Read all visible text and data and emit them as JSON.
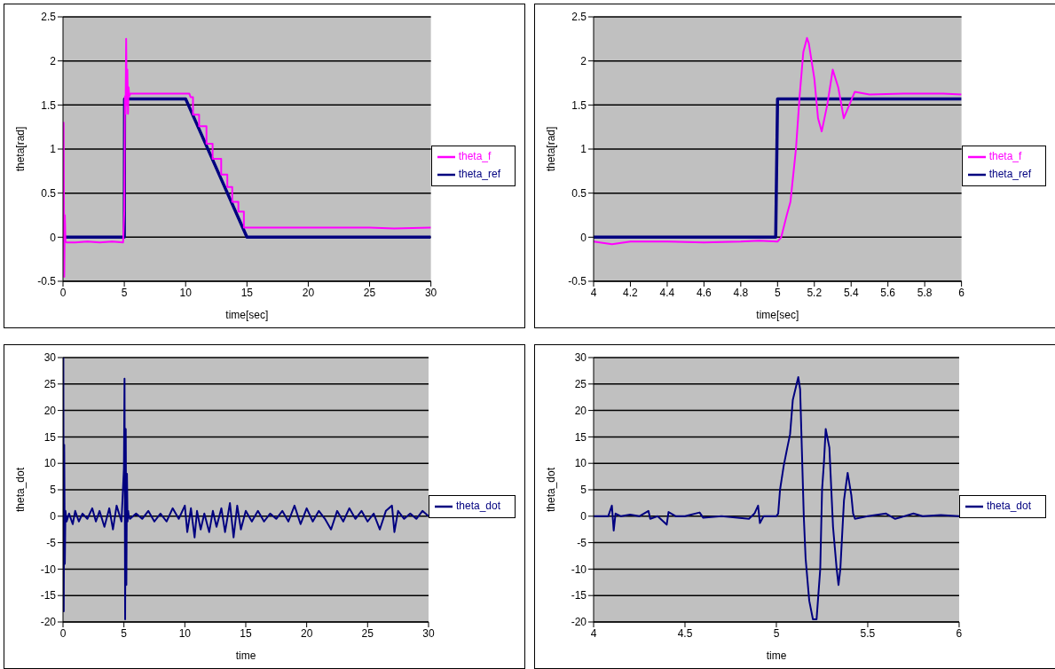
{
  "chart_data": [
    {
      "type": "line",
      "xlabel": "time[sec]",
      "ylabel": "theta[rad]",
      "xlim": [
        0,
        30
      ],
      "xticks": [
        0,
        5,
        10,
        15,
        20,
        25,
        30
      ],
      "ylim": [
        -0.5,
        2.5
      ],
      "yticks": [
        -0.5,
        0,
        0.5,
        1,
        1.5,
        2,
        2.5
      ],
      "grid": "y",
      "legend": "right",
      "marker": "none",
      "line_style": "solid",
      "series": [
        {
          "name": "theta_ref",
          "color": "#000080",
          "x": [
            0,
            5,
            5.02,
            10,
            15,
            30
          ],
          "values": [
            0,
            0,
            1.57,
            1.57,
            0,
            0
          ]
        },
        {
          "name": "theta_f",
          "color": "#ff00ff",
          "x": [
            0,
            0.05,
            0.1,
            0.15,
            0.2,
            0.3,
            0.5,
            1,
            2,
            3,
            4,
            4.9,
            5.0,
            5.05,
            5.1,
            5.15,
            5.2,
            5.25,
            5.3,
            5.35,
            5.4,
            5.5,
            6,
            8,
            10,
            10.3,
            10.4,
            10.6,
            10.6,
            11.1,
            11.1,
            11.7,
            11.7,
            12.2,
            12.2,
            12.9,
            12.9,
            13.4,
            13.4,
            13.8,
            13.8,
            14.3,
            14.3,
            14.75,
            14.75,
            16,
            20,
            25,
            27,
            30
          ],
          "values": [
            -0.05,
            1.3,
            -0.45,
            0.25,
            -0.05,
            -0.06,
            -0.06,
            -0.06,
            -0.05,
            -0.06,
            -0.05,
            -0.06,
            0.3,
            1.6,
            1.4,
            2.25,
            1.5,
            1.9,
            1.4,
            1.7,
            1.6,
            1.63,
            1.63,
            1.63,
            1.63,
            1.63,
            1.59,
            1.59,
            1.39,
            1.39,
            1.26,
            1.26,
            1.06,
            1.06,
            0.89,
            0.89,
            0.71,
            0.71,
            0.57,
            0.57,
            0.4,
            0.4,
            0.29,
            0.29,
            0.11,
            0.11,
            0.11,
            0.11,
            0.1,
            0.11
          ]
        }
      ]
    },
    {
      "type": "line",
      "xlabel": "time[sec]",
      "ylabel": "theta[rad]",
      "xlim": [
        4,
        6
      ],
      "xticks": [
        4,
        4.2,
        4.4,
        4.6,
        4.8,
        5,
        5.2,
        5.4,
        5.6,
        5.8,
        6
      ],
      "ylim": [
        -0.5,
        2.5
      ],
      "yticks": [
        -0.5,
        0,
        0.5,
        1,
        1.5,
        2,
        2.5
      ],
      "grid": "y",
      "legend": "right",
      "marker": "none",
      "line_style": "solid",
      "series": [
        {
          "name": "theta_ref",
          "color": "#000080",
          "x": [
            4,
            4.99,
            5.0,
            6
          ],
          "values": [
            0,
            0,
            1.57,
            1.57
          ]
        },
        {
          "name": "theta_f",
          "color": "#ff00ff",
          "x": [
            4,
            4.1,
            4.2,
            4.4,
            4.6,
            4.8,
            4.9,
            5.0,
            5.02,
            5.05,
            5.07,
            5.09,
            5.1,
            5.12,
            5.14,
            5.16,
            5.17,
            5.2,
            5.22,
            5.24,
            5.27,
            5.3,
            5.33,
            5.36,
            5.39,
            5.42,
            5.5,
            5.7,
            5.9,
            6
          ],
          "values": [
            -0.05,
            -0.08,
            -0.05,
            -0.05,
            -0.06,
            -0.05,
            -0.04,
            -0.05,
            0,
            0.25,
            0.4,
            0.8,
            1.0,
            1.6,
            2.1,
            2.26,
            2.2,
            1.8,
            1.35,
            1.2,
            1.5,
            1.9,
            1.7,
            1.35,
            1.5,
            1.65,
            1.62,
            1.63,
            1.63,
            1.62
          ]
        }
      ]
    },
    {
      "type": "line",
      "xlabel": "time",
      "ylabel": "theta_dot",
      "xlim": [
        0,
        30
      ],
      "xticks": [
        0,
        5,
        10,
        15,
        20,
        25,
        30
      ],
      "ylim": [
        -20,
        30
      ],
      "yticks": [
        -20,
        -15,
        -10,
        -5,
        0,
        5,
        10,
        15,
        20,
        25,
        30
      ],
      "grid": "y",
      "legend": "right",
      "marker": "none",
      "line_style": "solid",
      "series": [
        {
          "name": "theta_dot",
          "color": "#000080",
          "x": [
            0,
            0.03,
            0.06,
            0.1,
            0.15,
            0.2,
            0.3,
            0.5,
            0.8,
            1,
            1.3,
            1.6,
            2,
            2.4,
            2.7,
            3,
            3.4,
            3.8,
            4.1,
            4.4,
            4.8,
            5.0,
            5.05,
            5.1,
            5.15,
            5.2,
            5.25,
            5.3,
            5.35,
            5.4,
            5.5,
            6,
            6.5,
            7,
            7.5,
            8,
            8.5,
            9,
            9.5,
            10,
            10.2,
            10.5,
            10.8,
            11,
            11.3,
            11.6,
            12,
            12.3,
            12.6,
            13,
            13.3,
            13.7,
            14,
            14.3,
            14.6,
            15,
            15.5,
            16,
            16.5,
            17,
            17.5,
            18,
            18.5,
            19,
            19.5,
            20,
            20.5,
            21,
            21.5,
            22,
            22.5,
            23,
            23.5,
            24,
            24.5,
            25,
            25.5,
            26,
            26.5,
            27,
            27.2,
            27.5,
            28,
            28.5,
            29,
            29.5,
            30
          ],
          "values": [
            0,
            30,
            -18,
            13.5,
            -9,
            1,
            -1,
            0.5,
            -1.5,
            1,
            -1,
            0.5,
            -0.5,
            1.5,
            -1,
            1,
            -2,
            1.5,
            -2.5,
            2,
            -1,
            9,
            26,
            -19.5,
            16.5,
            -13,
            8,
            -1,
            1,
            0,
            -0.5,
            0.5,
            -0.5,
            1,
            -1,
            0.5,
            -1,
            1.5,
            -0.5,
            2,
            -3,
            1.5,
            -4,
            1,
            -2.5,
            0.5,
            -3,
            1,
            -2,
            1.5,
            -3,
            2.5,
            -4,
            2,
            -2.5,
            1,
            -1,
            1,
            -1,
            0.5,
            -0.5,
            1,
            -1,
            2,
            -1.5,
            1.5,
            -1,
            1,
            -0.5,
            -2.5,
            1,
            -1,
            1.5,
            -0.5,
            1,
            -1,
            0.5,
            -2.5,
            1,
            2,
            -3,
            1,
            -0.5,
            0.5,
            -0.5,
            1,
            0
          ]
        }
      ]
    },
    {
      "type": "line",
      "xlabel": "time",
      "ylabel": "theta_dot",
      "xlim": [
        4,
        6
      ],
      "xticks": [
        4,
        4.5,
        5,
        5.5,
        6
      ],
      "ylim": [
        -20,
        30
      ],
      "yticks": [
        -20,
        -15,
        -10,
        -5,
        0,
        5,
        10,
        15,
        20,
        25,
        30
      ],
      "grid": "y",
      "legend": "right",
      "marker": "none",
      "line_style": "solid",
      "series": [
        {
          "name": "theta_dot",
          "color": "#000080",
          "x": [
            4,
            4.08,
            4.1,
            4.11,
            4.12,
            4.15,
            4.2,
            4.25,
            4.3,
            4.31,
            4.35,
            4.4,
            4.41,
            4.45,
            4.5,
            4.58,
            4.6,
            4.7,
            4.85,
            4.88,
            4.9,
            4.91,
            4.93,
            5.0,
            5.01,
            5.02,
            5.04,
            5.06,
            5.075,
            5.09,
            5.12,
            5.13,
            5.15,
            5.16,
            5.18,
            5.2,
            5.22,
            5.24,
            5.25,
            5.26,
            5.27,
            5.29,
            5.31,
            5.33,
            5.34,
            5.35,
            5.37,
            5.39,
            5.41,
            5.42,
            5.43,
            5.5,
            5.6,
            5.65,
            5.75,
            5.8,
            5.9,
            6
          ],
          "values": [
            0,
            0,
            2,
            -2.7,
            0.5,
            0,
            0.3,
            0,
            1,
            -0.5,
            0,
            -1.6,
            0.8,
            0,
            0,
            0.7,
            -0.3,
            0,
            -0.5,
            0.5,
            2,
            -1.3,
            0,
            0,
            0.5,
            5,
            9.5,
            13,
            15.5,
            22,
            26.3,
            24,
            0,
            -8,
            -16,
            -19.5,
            -19.5,
            -10,
            5,
            10,
            16.5,
            13,
            -2,
            -10,
            -13,
            -10,
            3,
            8.2,
            4,
            0.5,
            -0.5,
            0,
            0.5,
            -0.5,
            0.5,
            0,
            0.2,
            0
          ]
        }
      ]
    }
  ]
}
